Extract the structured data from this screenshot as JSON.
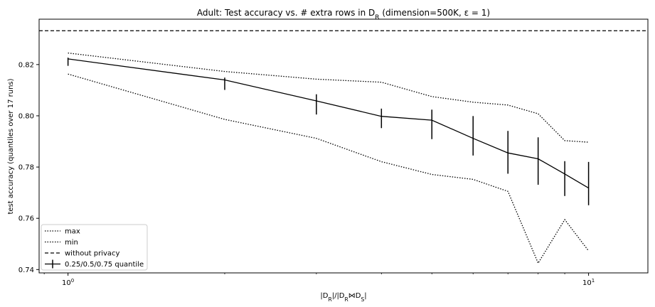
{
  "chart_data": {
    "type": "line",
    "title": "Adult: Test accuracy vs. # extra rows in D_R (dimension=500K, ε = 1)",
    "xlabel": "|D_R|/|D_R⋈D_S|",
    "ylabel": "test accuracy (quantiles over 17 runs)",
    "xscale": "log",
    "xlim": [
      0.88,
      13
    ],
    "ylim": [
      0.7387,
      0.8377
    ],
    "x_ticks": [
      {
        "value": 1,
        "label": "10^0"
      },
      {
        "value": 10,
        "label": "10^1"
      }
    ],
    "y_ticks": [
      0.74,
      0.76,
      0.78,
      0.8,
      0.82
    ],
    "grid": false,
    "legend_position": "lower-left",
    "x": [
      1,
      2,
      3,
      4,
      5,
      6,
      7,
      8,
      9,
      10
    ],
    "series": [
      {
        "name": "max",
        "style": "dotted",
        "values": [
          0.8245,
          0.8173,
          0.8143,
          0.8131,
          0.8075,
          0.8053,
          0.8042,
          0.8008,
          0.7903,
          0.7897
        ]
      },
      {
        "name": "min",
        "style": "dotted",
        "values": [
          0.8163,
          0.7986,
          0.7912,
          0.7821,
          0.7771,
          0.7752,
          0.7705,
          0.7425,
          0.7595,
          0.7473
        ]
      },
      {
        "name": "without privacy",
        "style": "dashed",
        "horizontal": true,
        "value": 0.8332
      },
      {
        "name": "0.25/0.5/0.75 quantile",
        "style": "solid",
        "errorbars": true,
        "values": [
          0.8222,
          0.814,
          0.8058,
          0.7998,
          0.7983,
          0.7912,
          0.7855,
          0.7832,
          0.7773,
          0.7718
        ],
        "lower": [
          0.8195,
          0.8101,
          0.8005,
          0.7952,
          0.7909,
          0.7845,
          0.7774,
          0.7731,
          0.7687,
          0.7651
        ],
        "upper": [
          0.8227,
          0.8149,
          0.8084,
          0.8028,
          0.8024,
          0.7999,
          0.7941,
          0.7916,
          0.7823,
          0.782
        ]
      }
    ]
  }
}
